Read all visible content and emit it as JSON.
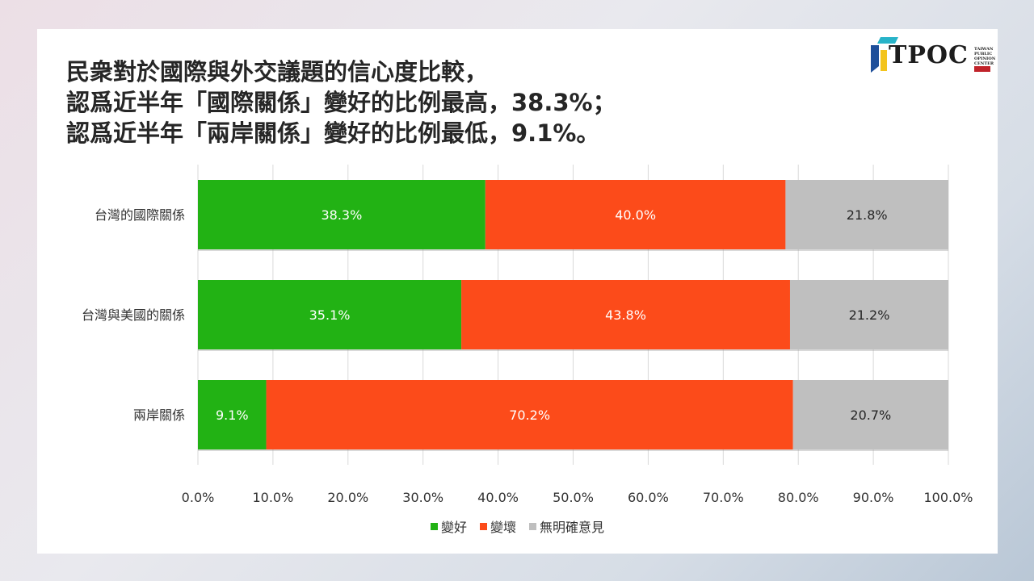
{
  "title_lines": [
    "民衆對於國際與外交議題的信心度比較，",
    "認爲近半年「國際關係」變好的比例最高，38.3%；",
    "認爲近半年「兩岸關係」變好的比例最低，9.1%。"
  ],
  "logo": {
    "text": "TPOC",
    "small_text": [
      "TAIWAN",
      "PUBLIC",
      "OPINION",
      "CENTER"
    ]
  },
  "chart_data": {
    "type": "bar",
    "orientation": "horizontal",
    "stacked": true,
    "categories": [
      "台灣的國際關係",
      "台灣與美國的關係",
      "兩岸關係"
    ],
    "series": [
      {
        "name": "變好",
        "color": "#22b214",
        "values": [
          38.3,
          35.1,
          9.1
        ],
        "labels": [
          "38.3%",
          "35.1%",
          "9.1%"
        ]
      },
      {
        "name": "變壞",
        "color": "#fc4b1a",
        "values": [
          40.0,
          43.8,
          70.2
        ],
        "labels": [
          "40.0%",
          "43.8%",
          "70.2%"
        ]
      },
      {
        "name": "無明確意見",
        "color": "#bfbfbf",
        "values": [
          21.8,
          21.2,
          20.7
        ],
        "labels": [
          "21.8%",
          "21.2%",
          "20.7%"
        ]
      }
    ],
    "xlim": [
      0,
      100
    ],
    "xticks": [
      "0.0%",
      "10.0%",
      "20.0%",
      "30.0%",
      "40.0%",
      "50.0%",
      "60.0%",
      "70.0%",
      "80.0%",
      "90.0%",
      "100.0%"
    ],
    "grid": true,
    "legend": "bottom"
  }
}
